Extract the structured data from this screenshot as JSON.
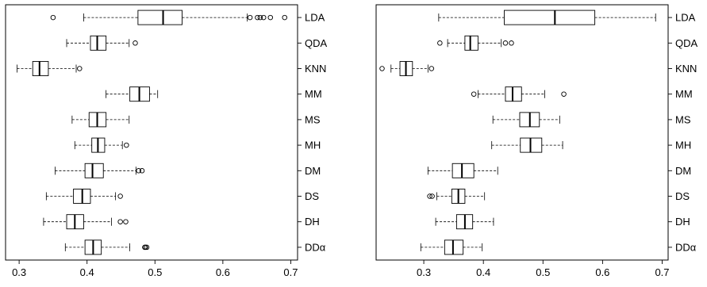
{
  "chart_data": [
    {
      "type": "box",
      "categories": [
        "LDA",
        "QDA",
        "KNN",
        "MM",
        "MS",
        "MH",
        "DM",
        "DS",
        "DH",
        "DDα"
      ],
      "xlim": [
        0.28,
        0.71
      ],
      "xticks": [
        0.3,
        0.4,
        0.5,
        0.6,
        0.7
      ],
      "xtick_labels": [
        "0.3",
        "0.4",
        "0.5",
        "0.6",
        "0.7"
      ],
      "grid": false,
      "boxes": [
        {
          "min": 0.395,
          "q1": 0.475,
          "median": 0.512,
          "q3": 0.54,
          "max": 0.636,
          "outliers": [
            0.35,
            0.64,
            0.651,
            0.655,
            0.66,
            0.67,
            0.691
          ]
        },
        {
          "min": 0.37,
          "q1": 0.405,
          "median": 0.415,
          "q3": 0.428,
          "max": 0.462,
          "outliers": [
            0.471
          ]
        },
        {
          "min": 0.297,
          "q1": 0.32,
          "median": 0.33,
          "q3": 0.343,
          "max": 0.384,
          "outliers": [
            0.389
          ]
        },
        {
          "min": 0.428,
          "q1": 0.463,
          "median": 0.477,
          "q3": 0.492,
          "max": 0.504,
          "outliers": []
        },
        {
          "min": 0.378,
          "q1": 0.403,
          "median": 0.415,
          "q3": 0.428,
          "max": 0.462,
          "outliers": []
        },
        {
          "min": 0.382,
          "q1": 0.407,
          "median": 0.416,
          "q3": 0.426,
          "max": 0.452,
          "outliers": [
            0.458
          ]
        },
        {
          "min": 0.353,
          "q1": 0.397,
          "median": 0.408,
          "q3": 0.424,
          "max": 0.472,
          "outliers": [
            0.476,
            0.481
          ]
        },
        {
          "min": 0.34,
          "q1": 0.38,
          "median": 0.393,
          "q3": 0.405,
          "max": 0.442,
          "outliers": [
            0.449
          ]
        },
        {
          "min": 0.336,
          "q1": 0.37,
          "median": 0.382,
          "q3": 0.395,
          "max": 0.436,
          "outliers": [
            0.449,
            0.457
          ]
        },
        {
          "min": 0.368,
          "q1": 0.397,
          "median": 0.409,
          "q3": 0.421,
          "max": 0.463,
          "outliers": [
            0.485,
            0.486,
            0.488
          ]
        }
      ]
    },
    {
      "type": "box",
      "categories": [
        "LDA",
        "QDA",
        "KNN",
        "MM",
        "MS",
        "MH",
        "DM",
        "DS",
        "DH",
        "DDα"
      ],
      "xlim": [
        0.22,
        0.71
      ],
      "xticks": [
        0.3,
        0.4,
        0.5,
        0.6,
        0.7
      ],
      "xtick_labels": [
        "0.3",
        "0.4",
        "0.5",
        "0.6",
        "0.7"
      ],
      "grid": false,
      "boxes": [
        {
          "min": 0.325,
          "q1": 0.435,
          "median": 0.52,
          "q3": 0.587,
          "max": 0.689,
          "outliers": []
        },
        {
          "min": 0.34,
          "q1": 0.369,
          "median": 0.378,
          "q3": 0.391,
          "max": 0.43,
          "outliers": [
            0.327,
            0.437,
            0.447
          ]
        },
        {
          "min": 0.245,
          "q1": 0.26,
          "median": 0.27,
          "q3": 0.281,
          "max": 0.307,
          "outliers": [
            0.23,
            0.313
          ]
        },
        {
          "min": 0.391,
          "q1": 0.437,
          "median": 0.449,
          "q3": 0.464,
          "max": 0.503,
          "outliers": [
            0.384,
            0.535
          ]
        },
        {
          "min": 0.416,
          "q1": 0.461,
          "median": 0.478,
          "q3": 0.494,
          "max": 0.528,
          "outliers": []
        },
        {
          "min": 0.414,
          "q1": 0.462,
          "median": 0.479,
          "q3": 0.498,
          "max": 0.533,
          "outliers": []
        },
        {
          "min": 0.307,
          "q1": 0.348,
          "median": 0.364,
          "q3": 0.384,
          "max": 0.424,
          "outliers": []
        },
        {
          "min": 0.322,
          "q1": 0.347,
          "median": 0.358,
          "q3": 0.369,
          "max": 0.402,
          "outliers": [
            0.31,
            0.314
          ]
        },
        {
          "min": 0.32,
          "q1": 0.355,
          "median": 0.369,
          "q3": 0.382,
          "max": 0.417,
          "outliers": []
        },
        {
          "min": 0.295,
          "q1": 0.335,
          "median": 0.349,
          "q3": 0.366,
          "max": 0.398,
          "outliers": []
        }
      ]
    }
  ]
}
